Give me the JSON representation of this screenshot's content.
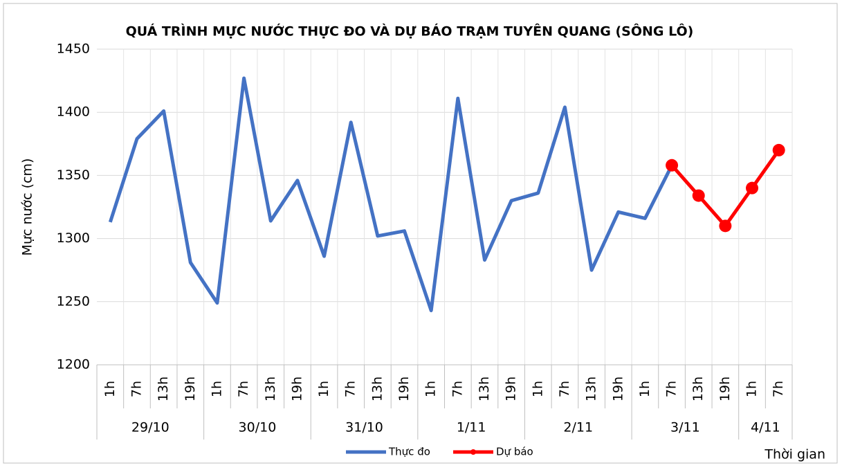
{
  "chart_data": {
    "type": "line",
    "title": "QUÁ TRÌNH MỰC NƯỚC THỰC ĐO VÀ DỰ BÁO TRẠM TUYÊN QUANG (SÔNG LÔ)",
    "y_label": "Mực nước (cm)",
    "x_label": "Thời gian",
    "groups": [
      {
        "label": "29/10",
        "categories": [
          "1h",
          "7h",
          "13h",
          "19h"
        ]
      },
      {
        "label": "30/10",
        "categories": [
          "1h",
          "7h",
          "13h",
          "19h"
        ]
      },
      {
        "label": "31/10",
        "categories": [
          "1h",
          "7h",
          "13h",
          "19h"
        ]
      },
      {
        "label": "1/11",
        "categories": [
          "1h",
          "7h",
          "13h",
          "19h"
        ]
      },
      {
        "label": "2/11",
        "categories": [
          "1h",
          "7h",
          "13h",
          "19h"
        ]
      },
      {
        "label": "3/11",
        "categories": [
          "1h",
          "7h",
          "13h",
          "19h"
        ]
      },
      {
        "label": "4/11",
        "categories": [
          "1h",
          "7h"
        ]
      }
    ],
    "series": [
      {
        "name": "Thực đo",
        "color": "#4472c4",
        "marker": false,
        "values": [
          1313,
          1379,
          1401,
          1281,
          1249,
          1427,
          1314,
          1346,
          1286,
          1392,
          1302,
          1306,
          1243,
          1411,
          1283,
          1330,
          1336,
          1404,
          1275,
          1321,
          1316,
          1358,
          null,
          null,
          null,
          null
        ]
      },
      {
        "name": "Dự báo",
        "color": "#ff0000",
        "marker": true,
        "values": [
          null,
          null,
          null,
          null,
          null,
          null,
          null,
          null,
          null,
          null,
          null,
          null,
          null,
          null,
          null,
          null,
          null,
          null,
          null,
          null,
          null,
          1358,
          1334,
          1310,
          1340,
          1370
        ]
      }
    ],
    "ylim": [
      1200,
      1450
    ],
    "yticks": [
      1200,
      1250,
      1300,
      1350,
      1400,
      1450
    ],
    "grid": true,
    "legend": "bottom"
  }
}
